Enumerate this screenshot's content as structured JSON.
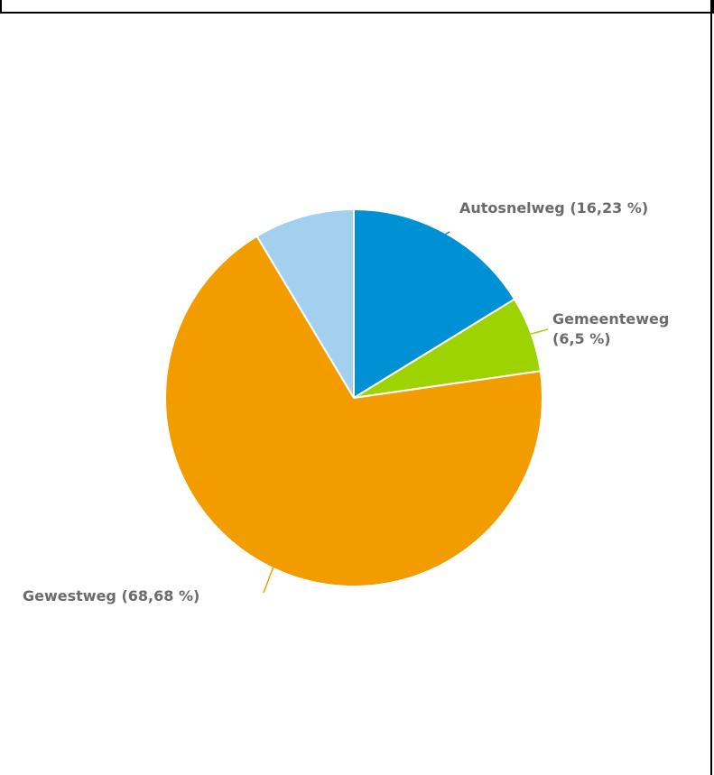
{
  "chart_data": {
    "type": "pie",
    "title": "",
    "slices": [
      {
        "label": "Autosnelweg",
        "value": 16.23,
        "label_text": "Autosnelweg (16,23 %)",
        "color": "#0090d4"
      },
      {
        "label": "Gemeenteweg",
        "value": 6.5,
        "label_text": "Gemeenteweg (6,5 %)",
        "color": "#9dd300"
      },
      {
        "label": "Gewestweg",
        "value": 68.68,
        "label_text": "Gewestweg (68,68 %)",
        "color": "#f29c00"
      },
      {
        "label": "",
        "value": 8.59,
        "label_text": "",
        "color": "#a2d0ee"
      }
    ]
  }
}
